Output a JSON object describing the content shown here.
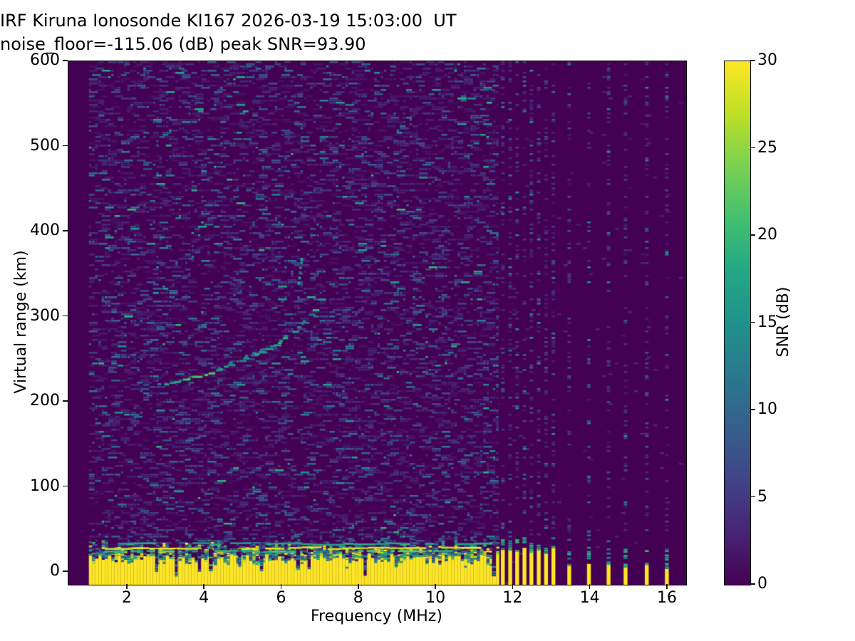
{
  "chart_data": {
    "type": "heatmap",
    "title": "IRF Kiruna Ionosonde KI167 2026-03-19 15:03:00  UT",
    "subtitle": "noise_floor=-115.06 (dB) peak SNR=93.90",
    "xlabel": "Frequency (MHz)",
    "ylabel": "Virtual range (km)",
    "xlim": [
      0.47,
      16.48
    ],
    "ylim": [
      -15,
      600
    ],
    "xticks": [
      2,
      4,
      6,
      8,
      10,
      12,
      14,
      16
    ],
    "yticks": [
      0,
      100,
      200,
      300,
      400,
      500,
      600
    ],
    "grid": false,
    "noise_floor_db": -115.06,
    "peak_snr_db": 93.9,
    "station": "KI167",
    "timestamp_ut": "2026-03-19 15:03:00",
    "colorbar": {
      "label": "SNR (dB)",
      "ticks": [
        0,
        5,
        10,
        15,
        20,
        25,
        30
      ],
      "vmin": 0,
      "vmax": 30,
      "colormap": "viridis"
    },
    "viridis_stops": [
      "#440154",
      "#482475",
      "#414487",
      "#355f8d",
      "#2a788e",
      "#21918c",
      "#22a884",
      "#44bf70",
      "#7ad151",
      "#bddf26",
      "#fde725"
    ],
    "data_start_mhz": 1.0,
    "ground_echo": {
      "freq_start_mhz": 1.0,
      "freq_end_mhz": 11.64,
      "solid_top_km": [
        10,
        22
      ],
      "ragged_top_km": [
        22,
        38
      ],
      "snr_db": 30
    },
    "echo_trace": {
      "snr_db_range": [
        11,
        22
      ],
      "points": [
        [
          2.78,
          222
        ],
        [
          2.95,
          222
        ],
        [
          3.1,
          223
        ],
        [
          3.55,
          228
        ],
        [
          3.8,
          231
        ],
        [
          4.1,
          234
        ],
        [
          4.4,
          240
        ],
        [
          4.7,
          246
        ],
        [
          5.0,
          252
        ],
        [
          5.3,
          258
        ],
        [
          5.6,
          264
        ],
        [
          5.9,
          271
        ],
        [
          6.15,
          279
        ],
        [
          6.4,
          288
        ],
        [
          6.6,
          298
        ],
        [
          6.8,
          310
        ],
        [
          6.95,
          321
        ],
        [
          7.08,
          330
        ]
      ],
      "second_hop_points": [
        [
          6.45,
          341
        ],
        [
          6.46,
          347
        ],
        [
          6.48,
          353
        ],
        [
          6.49,
          359
        ],
        [
          6.51,
          365
        ],
        [
          6.52,
          369
        ]
      ],
      "sporadic_points": [
        [
          3.33,
          96
        ]
      ]
    },
    "rfi_stripes": {
      "stripe_width_mhz": 0.1,
      "group_a_mhz": [
        11.73,
        11.92,
        12.1,
        12.29,
        12.47,
        12.66,
        12.85,
        13.04
      ],
      "group_a_top_km": 26,
      "group_b_mhz": [
        13.45,
        13.96,
        14.47,
        14.91,
        15.46,
        15.98
      ],
      "group_b_top_km": 8,
      "snr_db": 30
    },
    "noise": {
      "dense_region_mhz": [
        1.0,
        11.64
      ],
      "dense_density": 0.32,
      "typical_db": [
        1,
        9
      ],
      "max_db": 20,
      "column_density_group_a": 0.26,
      "column_density_group_b": 0.22
    },
    "seed": 42
  }
}
